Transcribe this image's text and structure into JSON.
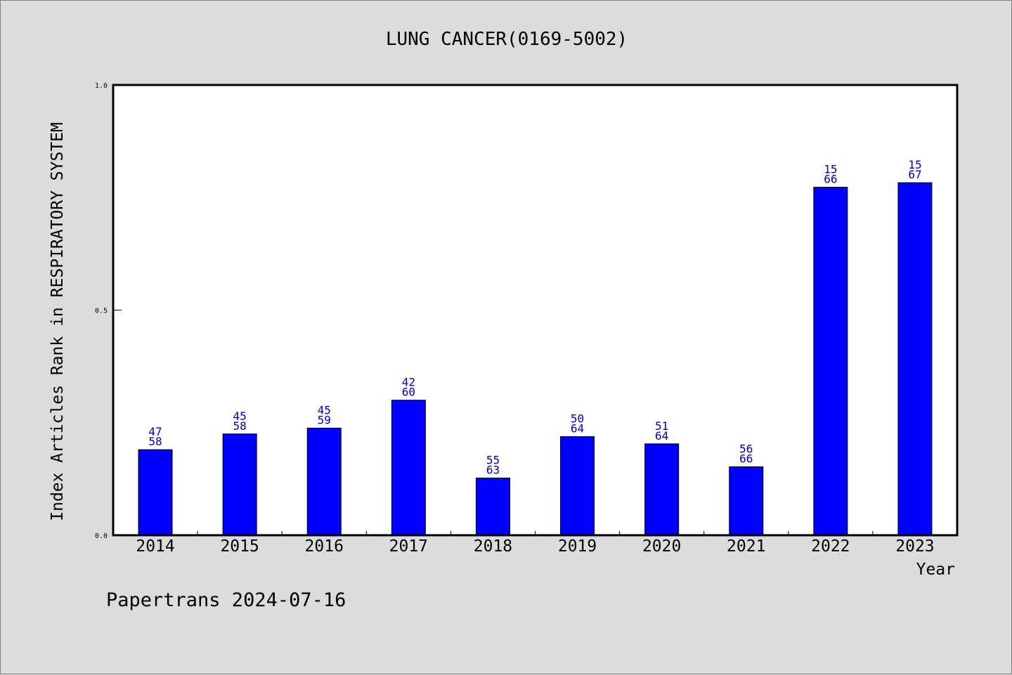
{
  "chart_data": {
    "type": "bar",
    "title": "LUNG CANCER(0169-5002)",
    "xlabel": "Year",
    "ylabel": "Index Articles Rank in RESPIRATORY SYSTEM",
    "ylim": [
      0,
      1.0
    ],
    "yticks": [
      "0.0",
      "0.5",
      "1.0"
    ],
    "categories": [
      "2014",
      "2015",
      "2016",
      "2017",
      "2018",
      "2019",
      "2020",
      "2021",
      "2022",
      "2023"
    ],
    "values": [
      0.19,
      0.225,
      0.238,
      0.3,
      0.127,
      0.219,
      0.203,
      0.152,
      0.773,
      0.783
    ],
    "labels": [
      [
        "47",
        "58"
      ],
      [
        "45",
        "58"
      ],
      [
        "45",
        "59"
      ],
      [
        "42",
        "60"
      ],
      [
        "55",
        "63"
      ],
      [
        "50",
        "64"
      ],
      [
        "51",
        "64"
      ],
      [
        "56",
        "66"
      ],
      [
        "15",
        "66"
      ],
      [
        "15",
        "67"
      ]
    ],
    "bar_color": "#0000ff",
    "label_color": "#0000cc",
    "grid": false,
    "legend": "none"
  },
  "footer": "Papertrans 2024-07-16"
}
